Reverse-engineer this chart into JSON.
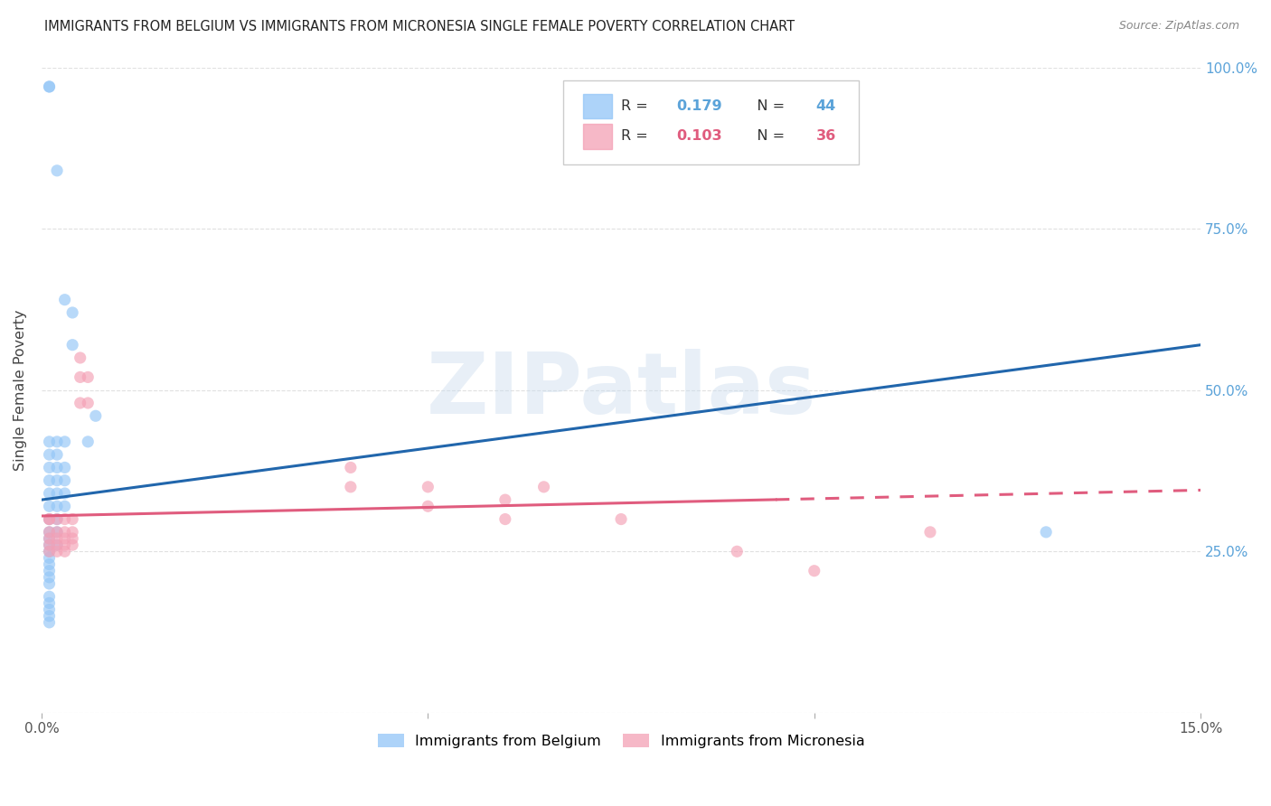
{
  "title": "IMMIGRANTS FROM BELGIUM VS IMMIGRANTS FROM MICRONESIA SINGLE FEMALE POVERTY CORRELATION CHART",
  "source": "Source: ZipAtlas.com",
  "ylabel": "Single Female Poverty",
  "legend_label1": "Immigrants from Belgium",
  "legend_label2": "Immigrants from Micronesia",
  "R1": 0.179,
  "N1": 44,
  "R2": 0.103,
  "N2": 36,
  "xlim": [
    0.0,
    0.15
  ],
  "ylim": [
    0.0,
    1.0
  ],
  "xticks": [
    0.0,
    0.05,
    0.1,
    0.15
  ],
  "xticklabels": [
    "0.0%",
    "",
    "",
    "15.0%"
  ],
  "yticks_left": [
    0.0,
    0.25,
    0.5,
    0.75,
    1.0
  ],
  "yticks_right": [
    0.25,
    0.5,
    0.75,
    1.0
  ],
  "yticklabels_right": [
    "25.0%",
    "50.0%",
    "75.0%",
    "100.0%"
  ],
  "color_belgium": "#92c5f7",
  "color_micronesia": "#f4a0b5",
  "color_line_belgium": "#2166ac",
  "color_line_micronesia": "#e05c7e",
  "belgium_x": [
    0.001,
    0.001,
    0.002,
    0.003,
    0.004,
    0.004,
    0.001,
    0.001,
    0.001,
    0.001,
    0.001,
    0.001,
    0.001,
    0.001,
    0.001,
    0.001,
    0.001,
    0.001,
    0.001,
    0.001,
    0.001,
    0.002,
    0.002,
    0.002,
    0.002,
    0.002,
    0.002,
    0.002,
    0.002,
    0.002,
    0.003,
    0.003,
    0.003,
    0.003,
    0.003,
    0.001,
    0.001,
    0.001,
    0.001,
    0.001,
    0.001,
    0.006,
    0.13,
    0.007
  ],
  "belgium_y": [
    0.97,
    0.97,
    0.84,
    0.64,
    0.62,
    0.57,
    0.42,
    0.4,
    0.38,
    0.36,
    0.34,
    0.32,
    0.3,
    0.28,
    0.27,
    0.26,
    0.25,
    0.24,
    0.23,
    0.22,
    0.21,
    0.42,
    0.4,
    0.38,
    0.36,
    0.34,
    0.32,
    0.3,
    0.28,
    0.26,
    0.42,
    0.38,
    0.36,
    0.34,
    0.32,
    0.2,
    0.18,
    0.17,
    0.16,
    0.15,
    0.14,
    0.42,
    0.28,
    0.46
  ],
  "micronesia_x": [
    0.001,
    0.001,
    0.001,
    0.001,
    0.001,
    0.001,
    0.002,
    0.002,
    0.002,
    0.002,
    0.002,
    0.003,
    0.003,
    0.003,
    0.003,
    0.003,
    0.004,
    0.004,
    0.004,
    0.004,
    0.005,
    0.005,
    0.005,
    0.006,
    0.006,
    0.04,
    0.04,
    0.05,
    0.05,
    0.06,
    0.06,
    0.065,
    0.075,
    0.09,
    0.1,
    0.115
  ],
  "micronesia_y": [
    0.3,
    0.28,
    0.27,
    0.26,
    0.25,
    0.3,
    0.3,
    0.28,
    0.27,
    0.26,
    0.25,
    0.3,
    0.28,
    0.27,
    0.26,
    0.25,
    0.3,
    0.28,
    0.27,
    0.26,
    0.55,
    0.52,
    0.48,
    0.52,
    0.48,
    0.38,
    0.35,
    0.35,
    0.32,
    0.33,
    0.3,
    0.35,
    0.3,
    0.25,
    0.22,
    0.28
  ],
  "line_belgium_x0": 0.0,
  "line_belgium_y0": 0.33,
  "line_belgium_x1": 0.15,
  "line_belgium_y1": 0.57,
  "line_micronesia_x0": 0.0,
  "line_micronesia_y0": 0.305,
  "line_micronesia_x1": 0.15,
  "line_micronesia_y1": 0.345,
  "line_micronesia_solid_end": 0.095,
  "watermark_text": "ZIPatlas",
  "background_color": "#ffffff",
  "grid_color": "#e0e0e0"
}
